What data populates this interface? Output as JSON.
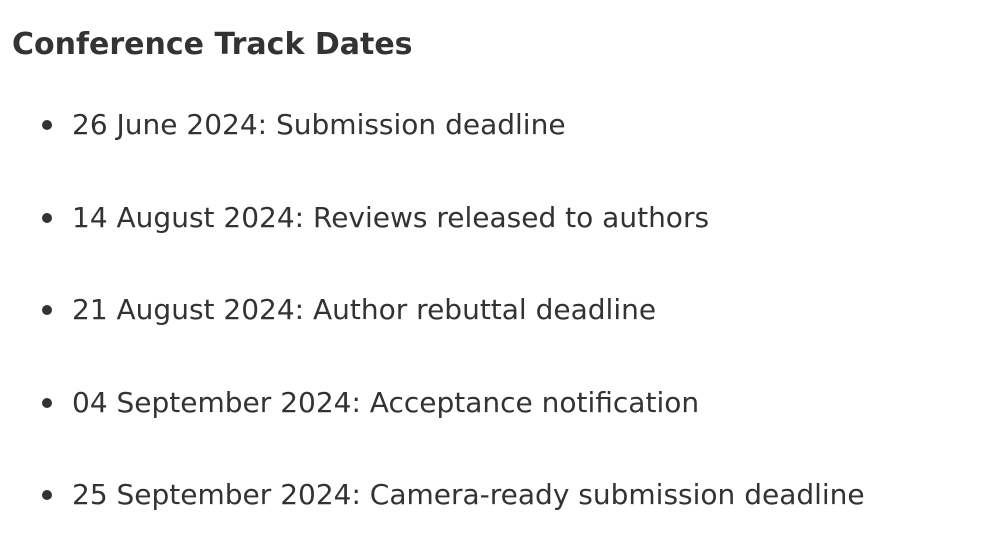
{
  "title": "Conference Track Dates",
  "items": [
    {
      "text": "26 June 2024: Submission deadline"
    },
    {
      "text": "14 August 2024: Reviews released to authors"
    },
    {
      "text": "21 August 2024: Author rebuttal deadline"
    },
    {
      "text": "04 September 2024: Acceptance notification"
    },
    {
      "text": "25 September 2024: Camera-ready submission deadline"
    }
  ]
}
